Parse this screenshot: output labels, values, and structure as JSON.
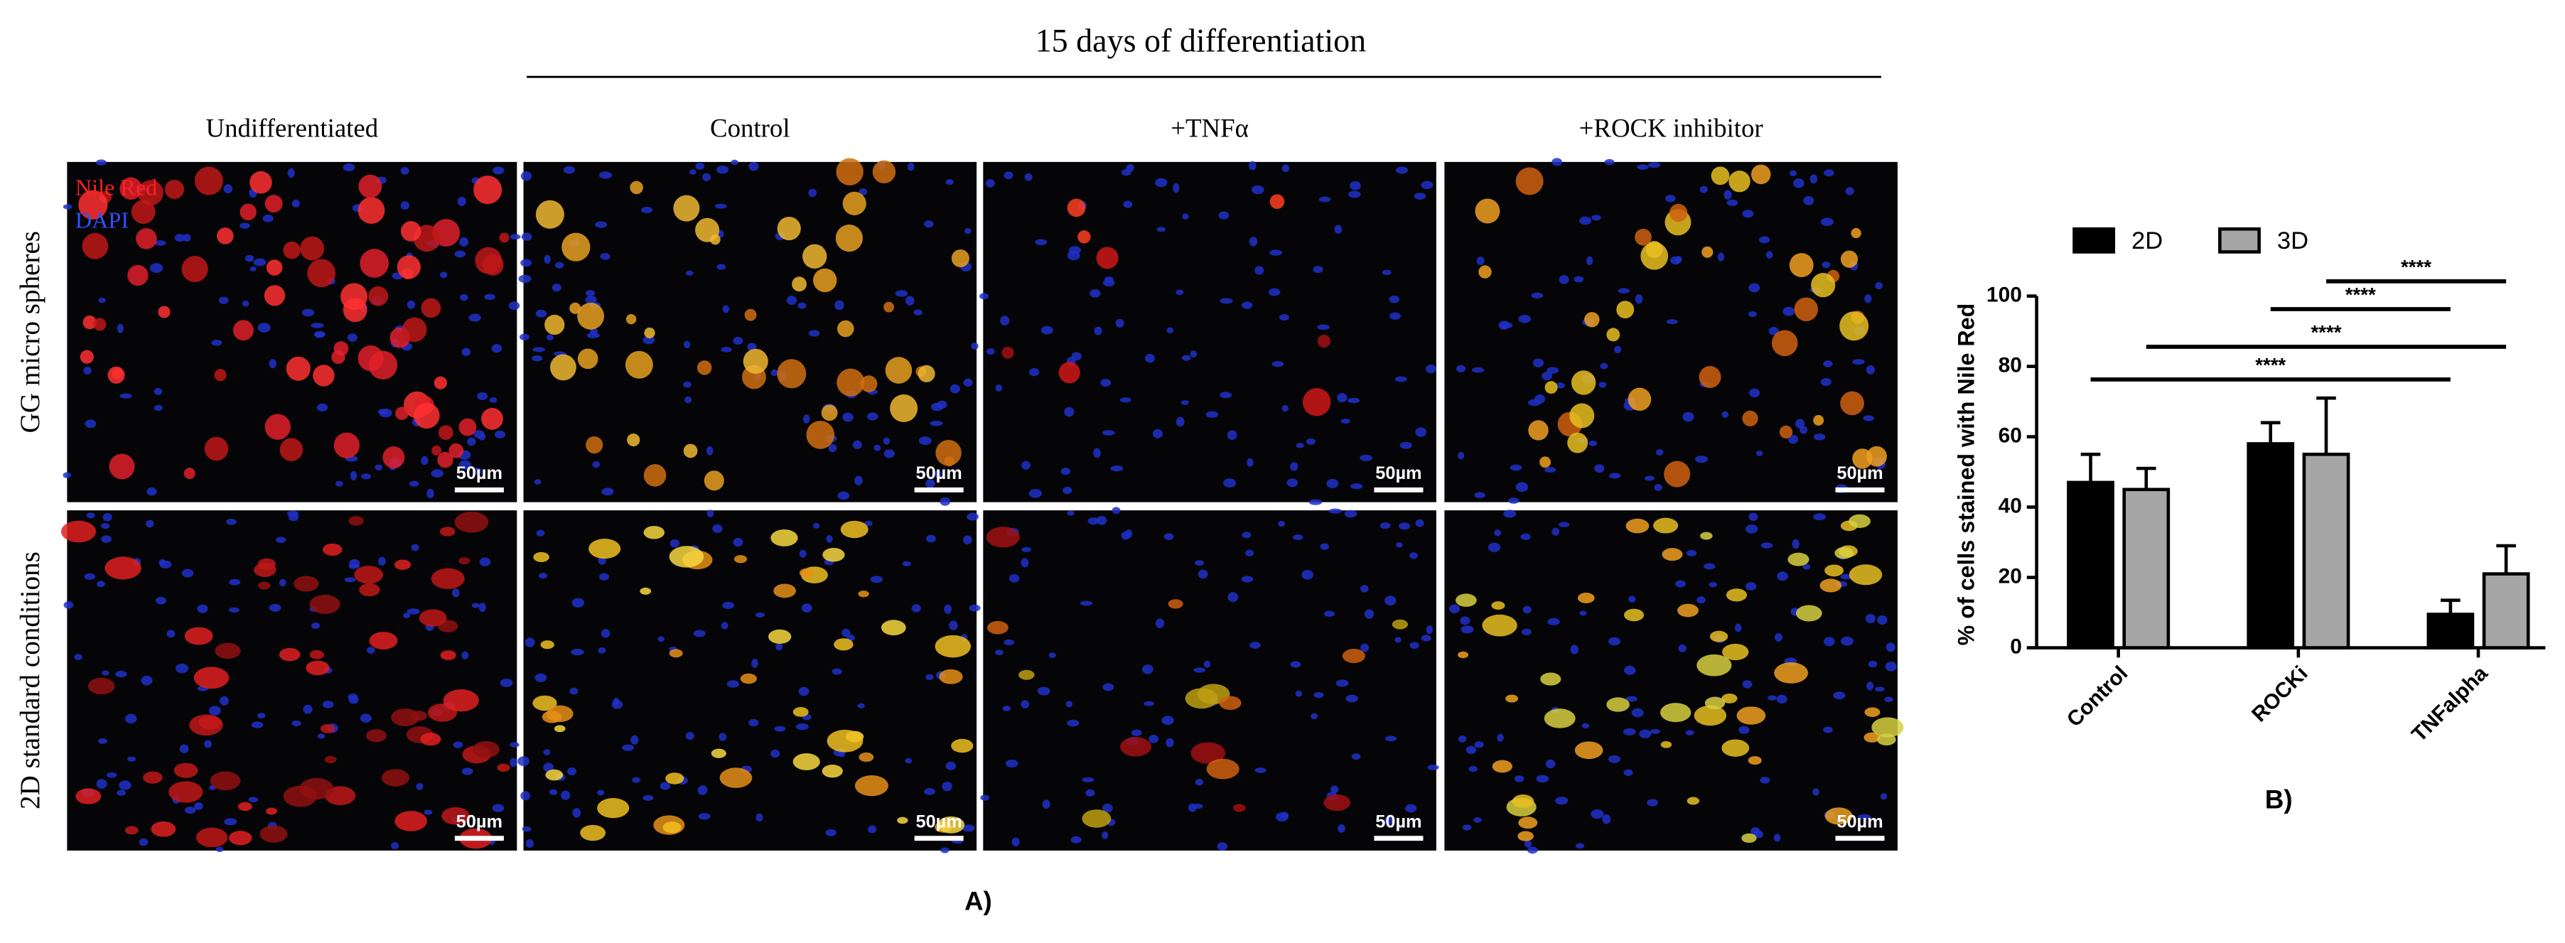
{
  "figure": {
    "title": "15 days of differentiation",
    "columns": [
      "Undifferentiated",
      "Control",
      "+TNFα",
      "+ROCK inhibitor"
    ],
    "rows": [
      "GG micro spheres",
      "2D standard conditions"
    ],
    "stain_labels": [
      "Nile Red",
      "DAPI"
    ],
    "scale_bar": "50µm",
    "panel_label": "A)"
  },
  "chart_data": {
    "type": "bar",
    "panel_label": "B)",
    "y_label": "% of cells stained with Nile Red",
    "categories": [
      "Control",
      "ROCKi",
      "TNFalpha"
    ],
    "series": [
      {
        "name": "2D",
        "color": "#000000",
        "values": [
          47,
          58,
          9.5
        ],
        "errors": [
          8,
          6,
          4
        ]
      },
      {
        "name": "3D",
        "color": "#a6a6a6",
        "values": [
          45,
          55,
          21
        ],
        "errors": [
          6,
          16,
          8
        ]
      }
    ],
    "ylim": [
      0,
      100
    ],
    "yticks": [
      0,
      20,
      40,
      60,
      80,
      100
    ],
    "annotations": [
      "****",
      "****",
      "****",
      "****"
    ]
  }
}
